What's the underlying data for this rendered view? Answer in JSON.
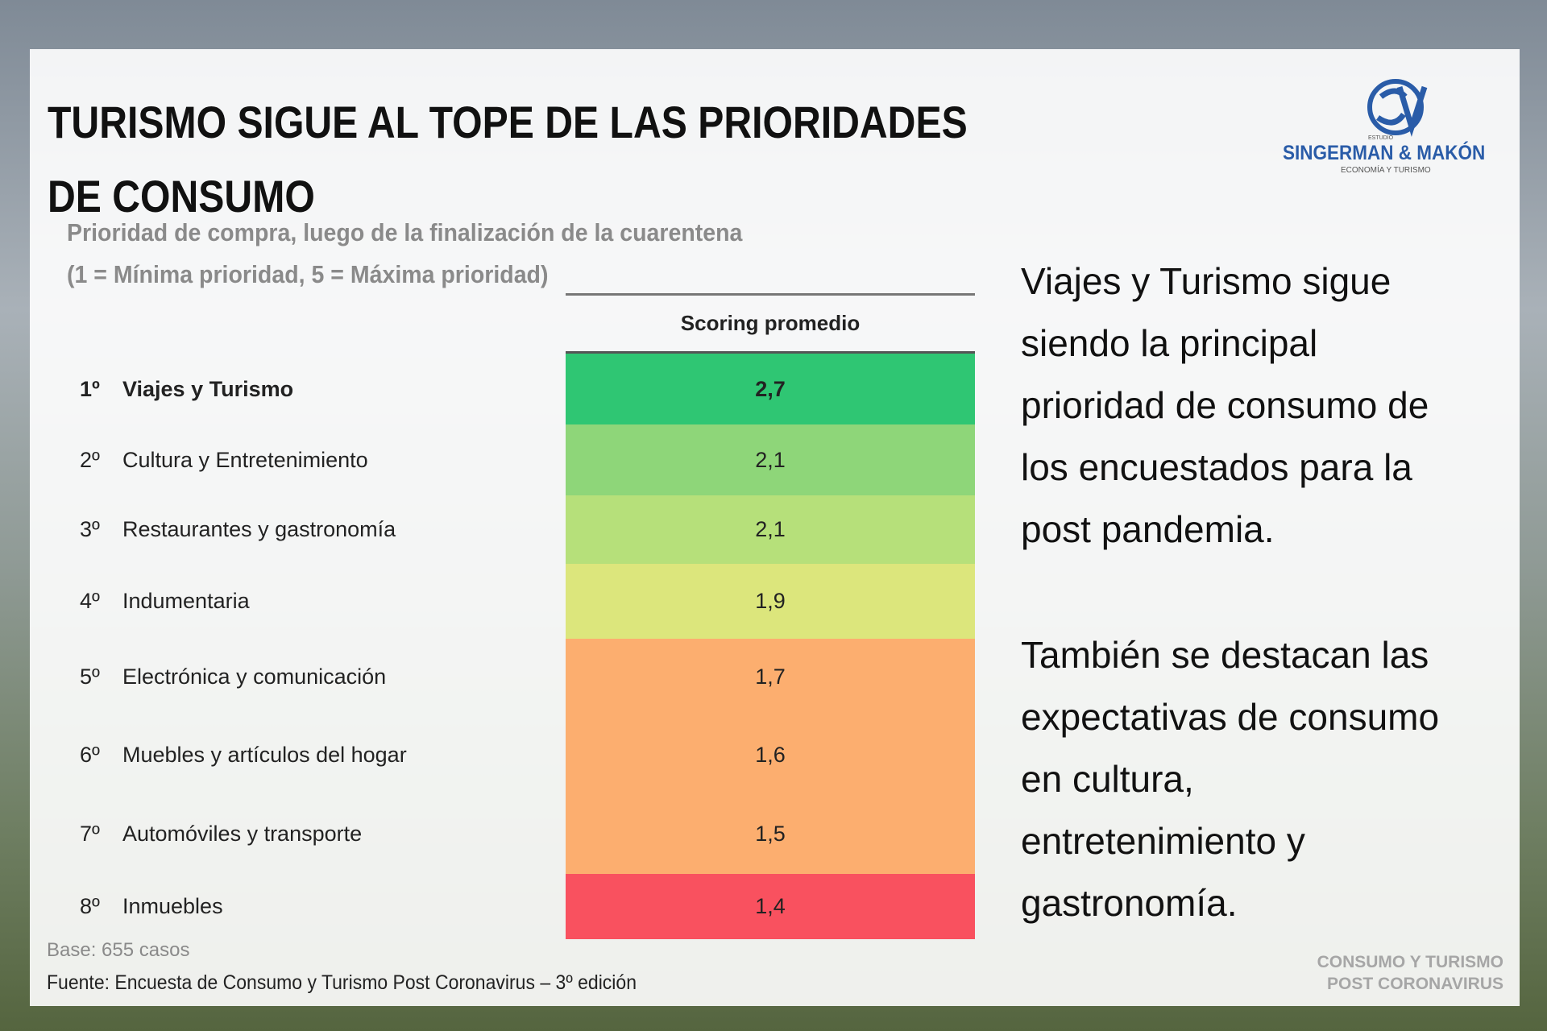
{
  "header": {
    "title_lines": [
      "TURISMO SIGUE AL TOPE DE LAS PRIORIDADES",
      "DE CONSUMO"
    ],
    "subtitle_lines": [
      "Prioridad de compra, luego de la finalización de la cuarentena",
      "(1 = Mínima prioridad, 5 = Máxima prioridad)"
    ]
  },
  "logo": {
    "small": "ESTUDIO",
    "name": "SINGERMAN & MAKÓN",
    "tagline": "ECONOMÍA Y TURISMO"
  },
  "table": {
    "column_header": "Scoring promedio",
    "rows": [
      {
        "rank": "1º",
        "label": "Viajes y Turismo",
        "score": "2,7",
        "color": "#2fc673"
      },
      {
        "rank": "2º",
        "label": "Cultura y Entretenimiento",
        "score": "2,1",
        "color": "#8ed679"
      },
      {
        "rank": "3º",
        "label": "Restaurantes y gastronomía",
        "score": "2,1",
        "color": "#b6e07a"
      },
      {
        "rank": "4º",
        "label": "Indumentaria",
        "score": "1,9",
        "color": "#dce67c"
      },
      {
        "rank": "5º",
        "label": "Electrónica y comunicación",
        "score": "1,7",
        "color": "#fcae6f"
      },
      {
        "rank": "6º",
        "label": "Muebles y artículos del hogar",
        "score": "1,6",
        "color": "#fcae6f"
      },
      {
        "rank": "7º",
        "label": "Automóviles y transporte",
        "score": "1,5",
        "color": "#fcae6f"
      },
      {
        "rank": "8º",
        "label": "Inmuebles",
        "score": "1,4",
        "color": "#f9515f"
      }
    ]
  },
  "commentary": {
    "paragraphs": [
      [
        "Viajes y Turismo sigue",
        "siendo la principal",
        "prioridad de consumo de",
        "los encuestados para la",
        "post pandemia."
      ],
      [
        "También se destacan las",
        "expectativas de consumo",
        "en cultura,",
        "entretenimiento y",
        "gastronomía."
      ]
    ]
  },
  "footer": {
    "base": "Base: 655 casos",
    "source": "Fuente: Encuesta de Consumo y Turismo Post Coronavirus – 3º edición",
    "brand_lines": [
      "CONSUMO Y TURISMO",
      "POST CORONAVIRUS"
    ]
  }
}
